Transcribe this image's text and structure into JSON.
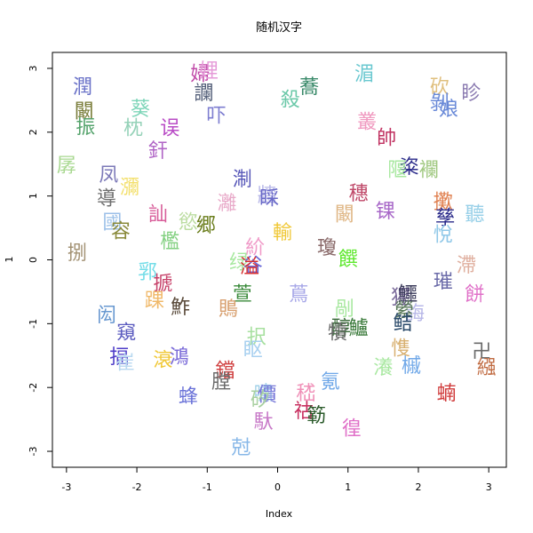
{
  "chart_data": {
    "type": "scatter",
    "title": "随机汉字",
    "xlabel": "Index",
    "ylabel": "1",
    "xlim": [
      -3.2,
      3.25
    ],
    "ylim": [
      -3.25,
      3.25
    ],
    "x_ticks": [
      "-3",
      "-2",
      "-1",
      "0",
      "1",
      "2",
      "3"
    ],
    "y_ticks": [
      "-3",
      "-2",
      "-1",
      "0",
      "1",
      "2",
      "3"
    ],
    "grid": false,
    "legend": "none",
    "points": [
      {
        "label": "潤",
        "x": -2.77,
        "y": 2.7,
        "color": "#6a72c8"
      },
      {
        "label": "闞",
        "x": -2.75,
        "y": 2.32,
        "color": "#7a7d3a"
      },
      {
        "label": "振",
        "x": -2.73,
        "y": 2.07,
        "color": "#55a36c"
      },
      {
        "label": "孱",
        "x": -3.0,
        "y": 1.47,
        "color": "#a8d890"
      },
      {
        "label": "凤",
        "x": -2.4,
        "y": 1.32,
        "color": "#7c79b8"
      },
      {
        "label": "瀰",
        "x": -2.1,
        "y": 1.13,
        "color": "#f3df6a"
      },
      {
        "label": "導",
        "x": -2.43,
        "y": 0.95,
        "color": "#6f6f6f"
      },
      {
        "label": "國",
        "x": -2.35,
        "y": 0.58,
        "color": "#9cc0e8"
      },
      {
        "label": "容",
        "x": -2.23,
        "y": 0.44,
        "color": "#8a8a3a"
      },
      {
        "label": "捌",
        "x": -2.85,
        "y": 0.1,
        "color": "#a29173"
      },
      {
        "label": "葵",
        "x": -1.95,
        "y": 2.35,
        "color": "#7dd5b8"
      },
      {
        "label": "枕",
        "x": -2.05,
        "y": 2.05,
        "color": "#95d2b8"
      },
      {
        "label": "误",
        "x": -1.53,
        "y": 2.05,
        "color": "#b94cc6"
      },
      {
        "label": "釬",
        "x": -1.7,
        "y": 1.7,
        "color": "#b065c6"
      },
      {
        "label": "訕",
        "x": -1.7,
        "y": 0.7,
        "color": "#d85e9a"
      },
      {
        "label": "慾",
        "x": -1.27,
        "y": 0.58,
        "color": "#bbdca0"
      },
      {
        "label": "郷",
        "x": -1.02,
        "y": 0.53,
        "color": "#6a7d1b"
      },
      {
        "label": "檻",
        "x": -1.53,
        "y": 0.28,
        "color": "#82d080"
      },
      {
        "label": "郛",
        "x": -1.85,
        "y": -0.2,
        "color": "#74dde8"
      },
      {
        "label": "搋",
        "x": -1.63,
        "y": -0.38,
        "color": "#c63f68"
      },
      {
        "label": "踝",
        "x": -1.75,
        "y": -0.65,
        "color": "#f0b868"
      },
      {
        "label": "鮓",
        "x": -1.38,
        "y": -0.75,
        "color": "#5a4a3a"
      },
      {
        "label": "闳",
        "x": -2.43,
        "y": -0.88,
        "color": "#6898d0"
      },
      {
        "label": "窺",
        "x": -2.15,
        "y": -1.15,
        "color": "#5a5abf"
      },
      {
        "label": "揊",
        "x": -2.25,
        "y": -1.53,
        "color": "#4e3cc8"
      },
      {
        "label": "崔",
        "x": -2.17,
        "y": -1.62,
        "color": "#b8d8f0"
      },
      {
        "label": "滖",
        "x": -1.63,
        "y": -1.58,
        "color": "#f0c838"
      },
      {
        "label": "鴻",
        "x": -1.4,
        "y": -1.53,
        "color": "#7a6ad8"
      },
      {
        "label": "蜂",
        "x": -1.27,
        "y": -2.15,
        "color": "#6a72d8"
      },
      {
        "label": "婦",
        "x": -1.1,
        "y": 2.9,
        "color": "#c04aa8"
      },
      {
        "label": "娌",
        "x": -0.98,
        "y": 2.95,
        "color": "#e59ad8"
      },
      {
        "label": "讕",
        "x": -1.05,
        "y": 2.6,
        "color": "#55607a"
      },
      {
        "label": "吓",
        "x": -0.87,
        "y": 2.25,
        "color": "#7d7dd0"
      },
      {
        "label": "淛",
        "x": -0.5,
        "y": 1.25,
        "color": "#5656b8"
      },
      {
        "label": "灕",
        "x": -0.72,
        "y": 0.88,
        "color": "#e8a8c8"
      },
      {
        "label": "牆",
        "x": -0.15,
        "y": 1.0,
        "color": "#b8b8e8"
      },
      {
        "label": "睬",
        "x": -0.12,
        "y": 0.95,
        "color": "#6a6ac8"
      },
      {
        "label": "輸",
        "x": 0.07,
        "y": 0.42,
        "color": "#f0c838"
      },
      {
        "label": "紒",
        "x": -0.32,
        "y": 0.18,
        "color": "#f09ac8"
      },
      {
        "label": "绿",
        "x": -0.55,
        "y": -0.05,
        "color": "#a8e8a0"
      },
      {
        "label": "谷",
        "x": -0.35,
        "y": -0.1,
        "color": "#6a6ad8"
      },
      {
        "label": "溢",
        "x": -0.4,
        "y": -0.12,
        "color": "#d83030"
      },
      {
        "label": "萱",
        "x": -0.5,
        "y": -0.55,
        "color": "#3a8a3a"
      },
      {
        "label": "鵙",
        "x": -0.7,
        "y": -0.78,
        "color": "#d8a070"
      },
      {
        "label": "蔦",
        "x": 0.3,
        "y": -0.55,
        "color": "#a8a8e8"
      },
      {
        "label": "択",
        "x": -0.3,
        "y": -1.22,
        "color": "#a8e0a0"
      },
      {
        "label": "眍",
        "x": -0.35,
        "y": -1.42,
        "color": "#a8d0f0"
      },
      {
        "label": "鐺",
        "x": -0.75,
        "y": -1.75,
        "color": "#d04040"
      },
      {
        "label": "膛",
        "x": -0.8,
        "y": -1.92,
        "color": "#6a6a6a"
      },
      {
        "label": "嘯",
        "x": -0.2,
        "y": -2.1,
        "color": "#a0d0e8"
      },
      {
        "label": "價",
        "x": -0.15,
        "y": -2.12,
        "color": "#7878d8"
      },
      {
        "label": "矽",
        "x": -0.25,
        "y": -2.2,
        "color": "#a8d0a0"
      },
      {
        "label": "馱",
        "x": -0.2,
        "y": -2.55,
        "color": "#c87ac8"
      },
      {
        "label": "尅",
        "x": -0.52,
        "y": -2.95,
        "color": "#88b8e8"
      },
      {
        "label": "蕎",
        "x": 0.45,
        "y": 2.7,
        "color": "#3a8a6a"
      },
      {
        "label": "殺",
        "x": 0.18,
        "y": 2.5,
        "color": "#6ac8a8"
      },
      {
        "label": "湄",
        "x": 1.23,
        "y": 2.9,
        "color": "#6ac8d0"
      },
      {
        "label": "叢",
        "x": 1.27,
        "y": 2.15,
        "color": "#f09ac0"
      },
      {
        "label": "帥",
        "x": 1.55,
        "y": 1.9,
        "color": "#c03060"
      },
      {
        "label": "穗",
        "x": 1.15,
        "y": 1.03,
        "color": "#c04a6a"
      },
      {
        "label": "闞",
        "x": 0.95,
        "y": 0.7,
        "color": "#e0b888"
      },
      {
        "label": "锞",
        "x": 1.53,
        "y": 0.75,
        "color": "#a868c8"
      },
      {
        "label": "瓊",
        "x": 0.7,
        "y": 0.18,
        "color": "#8a6a6a"
      },
      {
        "label": "饌",
        "x": 1.0,
        "y": 0.0,
        "color": "#60e830"
      },
      {
        "label": "剮",
        "x": 0.95,
        "y": -0.78,
        "color": "#a8e8a0"
      },
      {
        "label": "鱸",
        "x": 1.15,
        "y": -1.08,
        "color": "#3a7a3a"
      },
      {
        "label": "醇",
        "x": 0.9,
        "y": -1.08,
        "color": "#3a6a3a"
      },
      {
        "label": "犢",
        "x": 0.85,
        "y": -1.15,
        "color": "#6a6a6a"
      },
      {
        "label": "氪",
        "x": 0.75,
        "y": -1.92,
        "color": "#70a8e8"
      },
      {
        "label": "嵇",
        "x": 0.4,
        "y": -2.1,
        "color": "#f090b8"
      },
      {
        "label": "祜",
        "x": 0.37,
        "y": -2.38,
        "color": "#c83060"
      },
      {
        "label": "簕",
        "x": 0.55,
        "y": -2.45,
        "color": "#2a5a2a"
      },
      {
        "label": "徨",
        "x": 1.05,
        "y": -2.65,
        "color": "#e070c8"
      },
      {
        "label": "砍",
        "x": 2.3,
        "y": 2.7,
        "color": "#e0c080"
      },
      {
        "label": "剝",
        "x": 2.3,
        "y": 2.45,
        "color": "#6a8ad8"
      },
      {
        "label": "娘",
        "x": 2.43,
        "y": 2.35,
        "color": "#6a8ad8"
      },
      {
        "label": "眕",
        "x": 2.75,
        "y": 2.6,
        "color": "#8a7ab0"
      },
      {
        "label": "粢",
        "x": 1.87,
        "y": 1.45,
        "color": "#2a2a8a"
      },
      {
        "label": "隁",
        "x": 1.7,
        "y": 1.4,
        "color": "#a8e8a0"
      },
      {
        "label": "襴",
        "x": 2.15,
        "y": 1.4,
        "color": "#a0c880"
      },
      {
        "label": "擹",
        "x": 2.35,
        "y": 0.9,
        "color": "#e08050"
      },
      {
        "label": "孳",
        "x": 2.38,
        "y": 0.65,
        "color": "#2a2a8a"
      },
      {
        "label": "聽",
        "x": 2.8,
        "y": 0.7,
        "color": "#98d0e8"
      },
      {
        "label": "悅",
        "x": 2.35,
        "y": 0.38,
        "color": "#90c8e8"
      },
      {
        "label": "滯",
        "x": 2.68,
        "y": -0.1,
        "color": "#e0b0a0"
      },
      {
        "label": "璀",
        "x": 2.35,
        "y": -0.35,
        "color": "#6a6aa8"
      },
      {
        "label": "餅",
        "x": 2.8,
        "y": -0.55,
        "color": "#e070c8"
      },
      {
        "label": "猩",
        "x": 1.75,
        "y": -0.6,
        "color": "#7a6a9a"
      },
      {
        "label": "鱷",
        "x": 1.85,
        "y": -0.55,
        "color": "#3a3a5a"
      },
      {
        "label": "誨",
        "x": 1.95,
        "y": -0.85,
        "color": "#b8b8e8"
      },
      {
        "label": "縈",
        "x": 1.8,
        "y": -0.8,
        "color": "#5a7a5a"
      },
      {
        "label": "鲒",
        "x": 1.78,
        "y": -1.0,
        "color": "#2a4a6a"
      },
      {
        "label": "愯",
        "x": 1.75,
        "y": -1.4,
        "color": "#d8b070"
      },
      {
        "label": "瀁",
        "x": 1.5,
        "y": -1.7,
        "color": "#a8e8a0"
      },
      {
        "label": "槭",
        "x": 1.9,
        "y": -1.67,
        "color": "#70a8e8"
      },
      {
        "label": "卍",
        "x": 2.9,
        "y": -1.45,
        "color": "#6a6a6a"
      },
      {
        "label": "繦",
        "x": 2.97,
        "y": -1.7,
        "color": "#c06a40"
      },
      {
        "label": "蝻",
        "x": 2.4,
        "y": -2.1,
        "color": "#d03a3a"
      }
    ]
  }
}
